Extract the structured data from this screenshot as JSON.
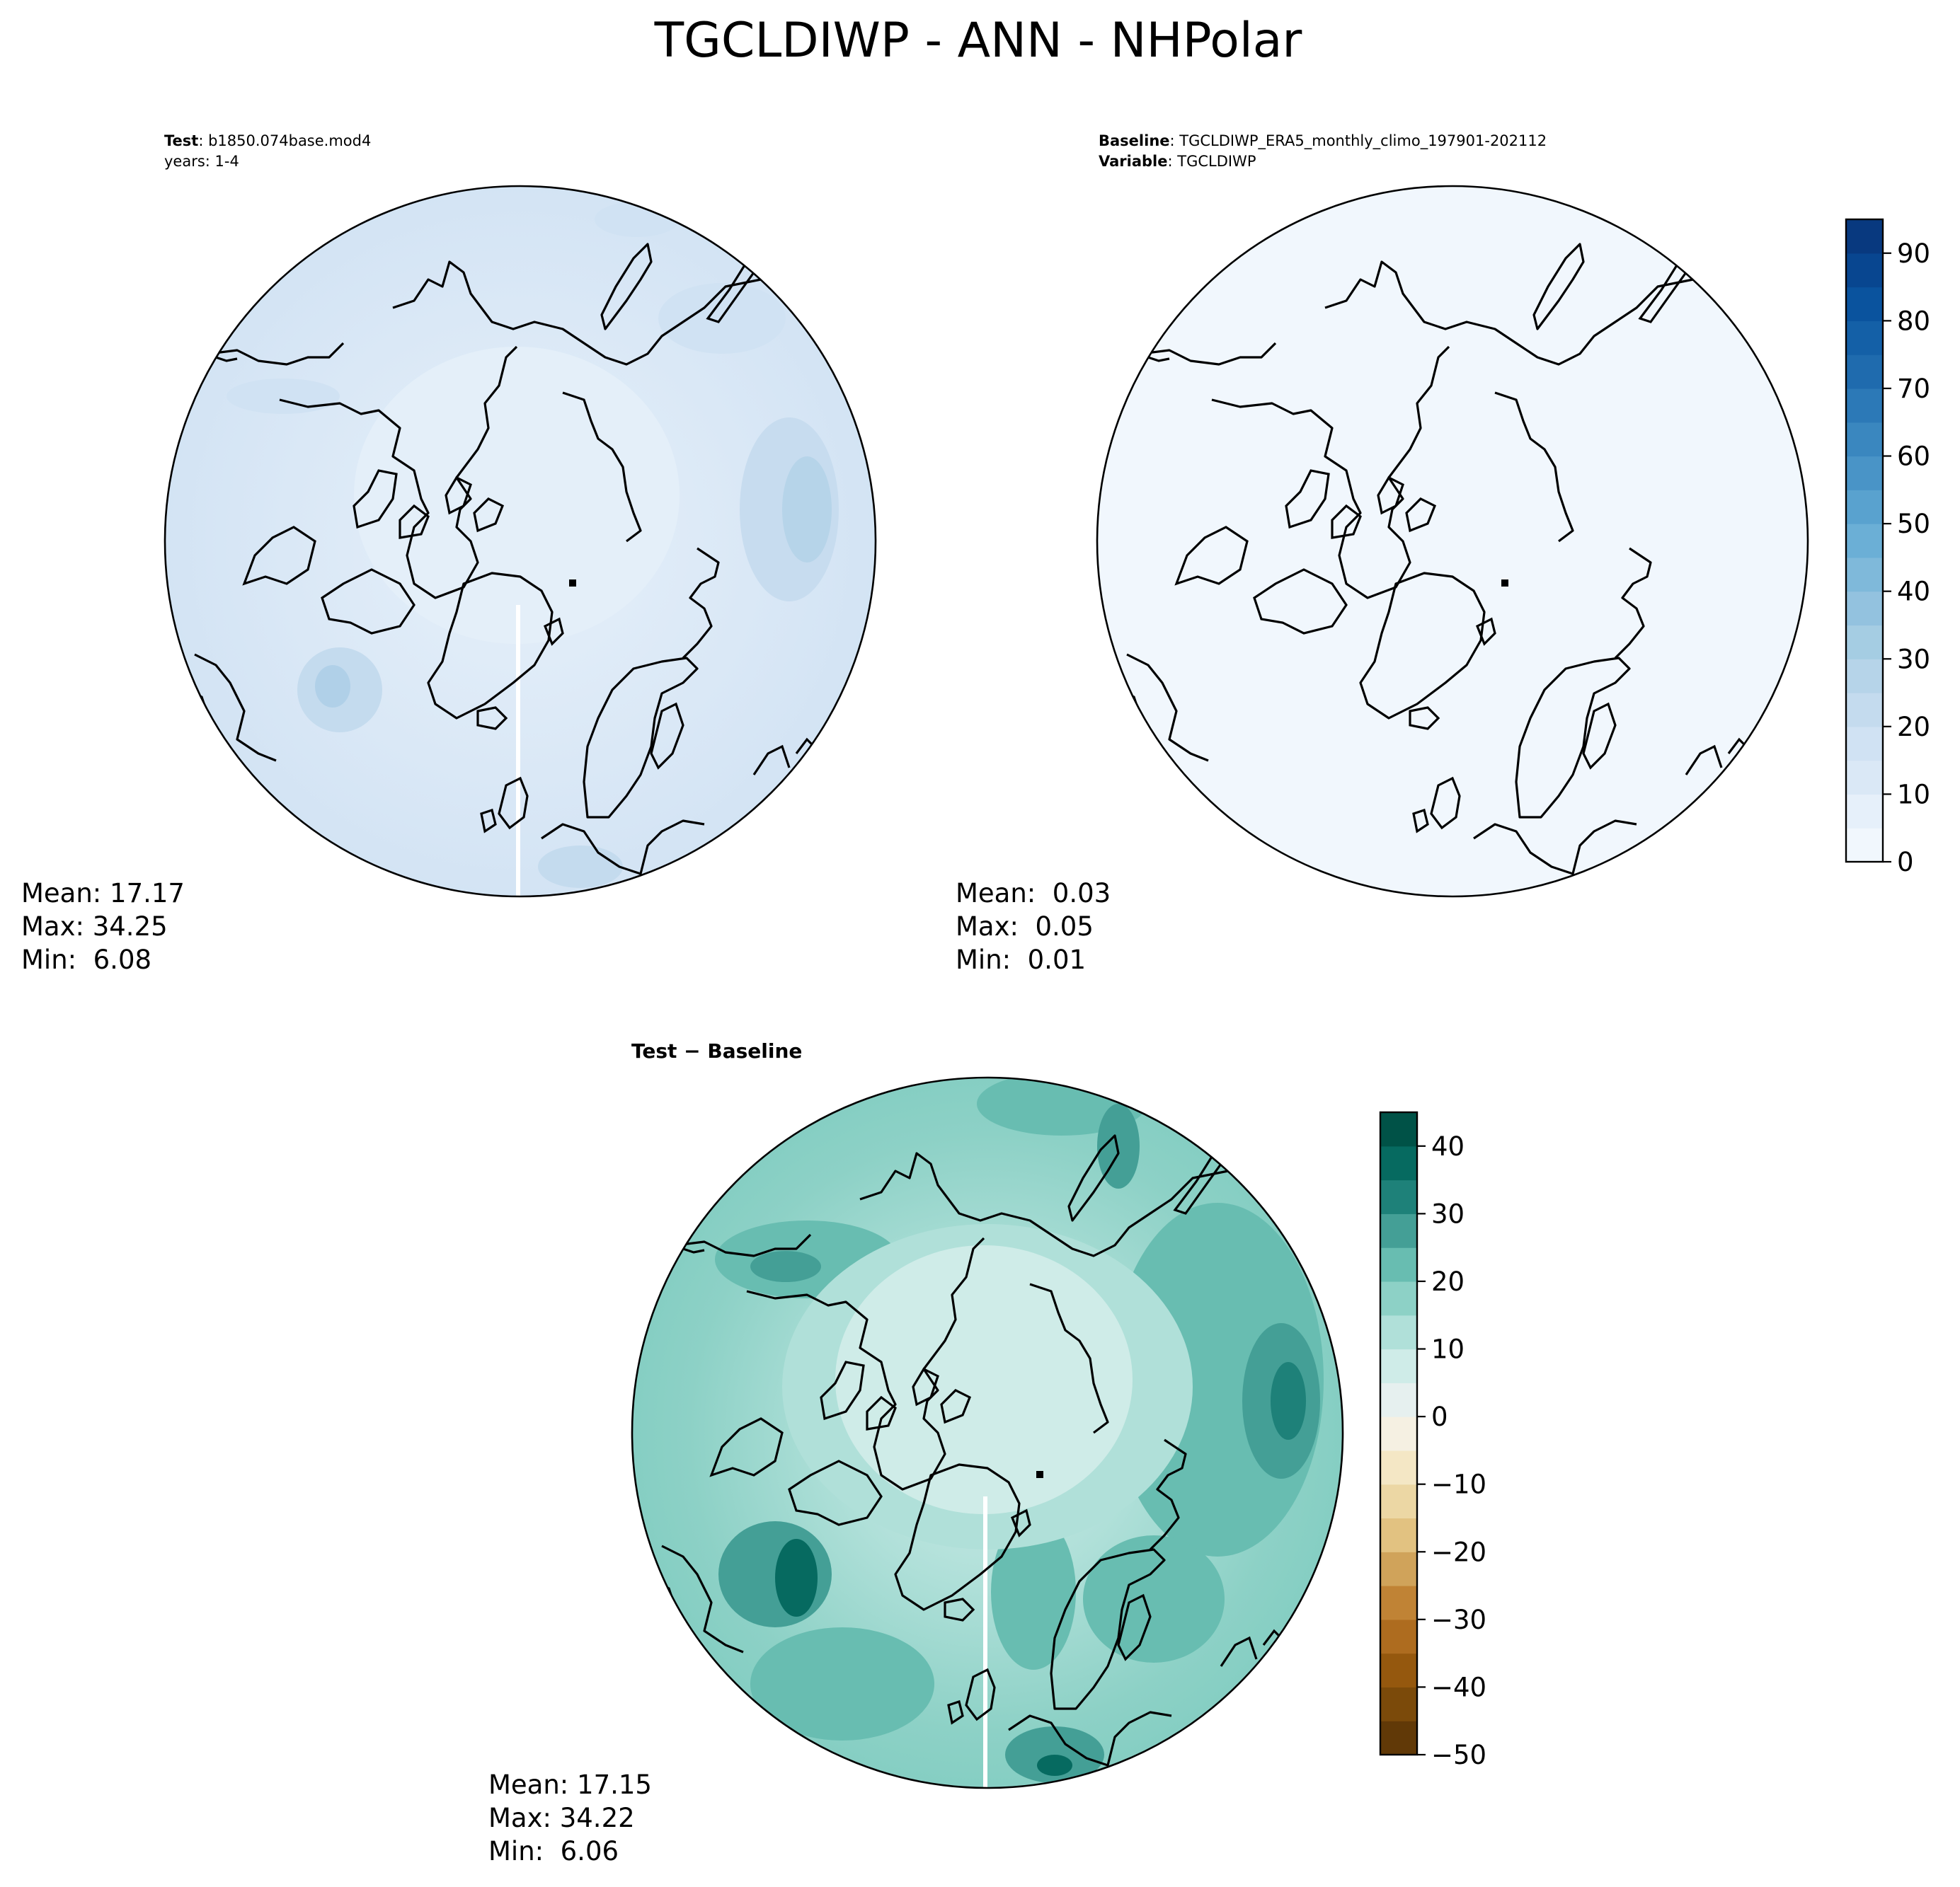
{
  "title": "TGCLDIWP - ANN - NHPolar",
  "panels": [
    {
      "id": "test",
      "header_lines": [
        {
          "bold": "Test",
          "text": ": b1850.074base.mod4"
        },
        {
          "bold": "",
          "text": "years: 1-4"
        }
      ],
      "stats": {
        "mean": "Mean: 17.17",
        "max": "Max: 34.25",
        "min": "Min:  6.08"
      },
      "field": "test"
    },
    {
      "id": "baseline",
      "header_lines": [
        {
          "bold": "Baseline",
          "text": ": TGCLDIWP_ERA5_monthly_climo_197901-202112"
        },
        {
          "bold": "Variable",
          "text": ": TGCLDIWP"
        }
      ],
      "stats": {
        "mean": "Mean:  0.03",
        "max": "Max:  0.05",
        "min": "Min:  0.01"
      },
      "field": "baseline"
    },
    {
      "id": "diff",
      "header_lines": [
        {
          "bold": "Test − Baseline",
          "text": ""
        }
      ],
      "stats": {
        "mean": "Mean: 17.15",
        "max": "Max: 34.22",
        "min": "Min:  6.06"
      },
      "field": "diff"
    }
  ],
  "colorbars": [
    {
      "id": "blues",
      "range": [
        0,
        95
      ],
      "ticks": [
        0,
        10,
        20,
        30,
        40,
        50,
        60,
        70,
        80,
        90
      ],
      "tick_labels": [
        "0",
        "10",
        "20",
        "30",
        "40",
        "50",
        "60",
        "70",
        "80",
        "90"
      ],
      "colors": [
        "#f1f7fd",
        "#e6f0fa",
        "#dae8f6",
        "#d0e2f3",
        "#c4dbee",
        "#b6d4e9",
        "#a5cde3",
        "#93c2df",
        "#7fb9da",
        "#6bafd6",
        "#59a2cf",
        "#4994c7",
        "#3a87bf",
        "#2c79b7",
        "#1f6bae",
        "#1460a7",
        "#0a539e",
        "#084690",
        "#08397f"
      ]
    },
    {
      "id": "brbg",
      "range": [
        -50,
        45
      ],
      "ticks": [
        -50,
        -40,
        -30,
        -20,
        -10,
        0,
        10,
        20,
        30,
        40
      ],
      "tick_labels": [
        "−50",
        "−40",
        "−30",
        "−20",
        "−10",
        "0",
        "10",
        "20",
        "30",
        "40"
      ],
      "colors": [
        "#613907",
        "#7b4a0a",
        "#95580e",
        "#ae6c1f",
        "#c08335",
        "#d0a35a",
        "#e2c281",
        "#ecd7a4",
        "#f4e7c5",
        "#f5f0e2",
        "#e6f0ef",
        "#cfece8",
        "#b0e0d9",
        "#8dd1c6",
        "#68bdb1",
        "#449f96",
        "#1e8179",
        "#066a60",
        "#005247"
      ]
    }
  ],
  "chart_data": [
    {
      "type": "heatmap",
      "title": "Test: b1850.074base.mod4",
      "projection": "north polar stereographic",
      "colormap": "Blues",
      "color_range": [
        0,
        95
      ],
      "mean": 17.17,
      "max": 34.25,
      "min": 6.08
    },
    {
      "type": "heatmap",
      "title": "Baseline: TGCLDIWP_ERA5_monthly_climo_197901-202112",
      "projection": "north polar stereographic",
      "colormap": "Blues",
      "color_range": [
        0,
        95
      ],
      "mean": 0.03,
      "max": 0.05,
      "min": 0.01
    },
    {
      "type": "heatmap",
      "title": "Test − Baseline",
      "projection": "north polar stereographic",
      "colormap": "BrBG",
      "color_range": [
        -50,
        45
      ],
      "mean": 17.15,
      "max": 34.22,
      "min": 6.06
    }
  ]
}
